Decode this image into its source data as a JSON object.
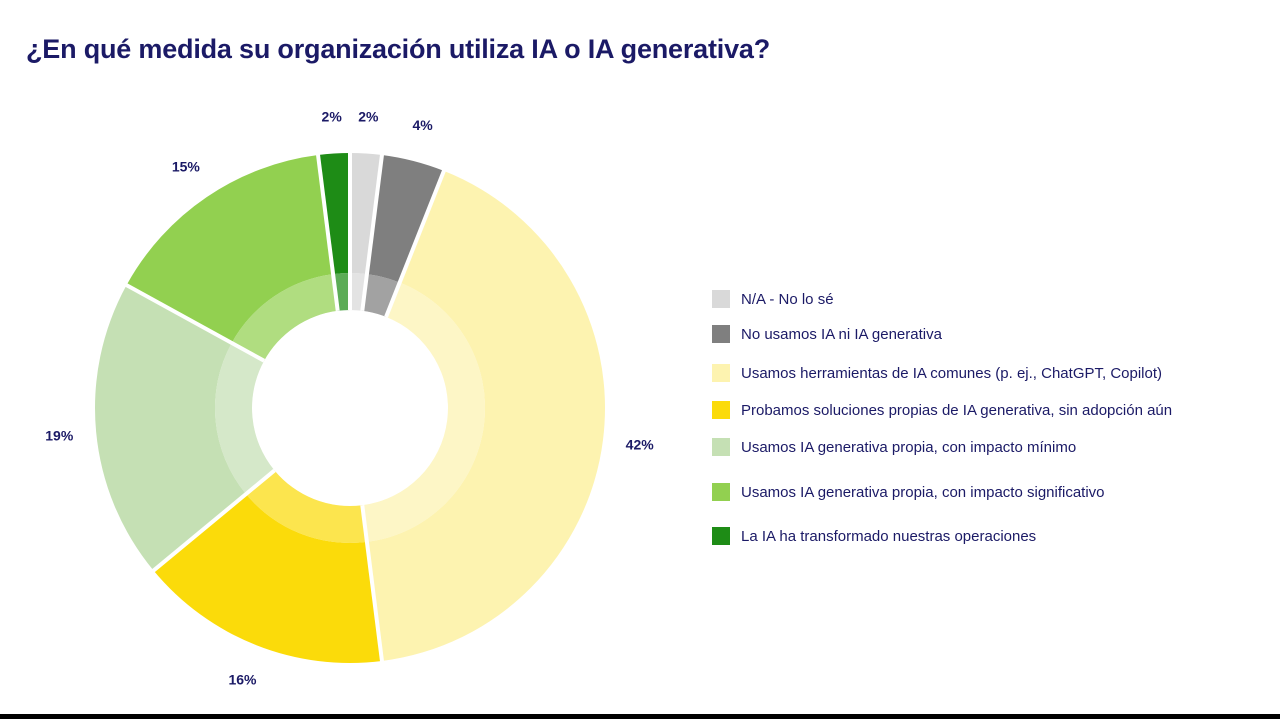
{
  "title": "¿En qué medida su organización utiliza IA o IA generativa?",
  "chart_data": {
    "type": "pie",
    "variant": "donut",
    "title": "¿En qué medida su organización utiliza IA o IA generativa?",
    "legend_position": "right",
    "slices": [
      {
        "label": "N/A - No lo sé",
        "value": 2,
        "display": "2%",
        "color": "#d9d9d9"
      },
      {
        "label": "No usamos IA ni IA generativa",
        "value": 4,
        "display": "4%",
        "color": "#7f7f7f"
      },
      {
        "label": "Usamos herramientas de IA comunes (p. ej., ChatGPT, Copilot)",
        "value": 42,
        "display": "42%",
        "color": "#fdf3b0"
      },
      {
        "label": "Probamos soluciones propias de IA generativa, sin adopción aún",
        "value": 16,
        "display": "16%",
        "color": "#fbdb0a"
      },
      {
        "label": "Usamos IA generativa propia, con impacto mínimo",
        "value": 19,
        "display": "19%",
        "color": "#c5e0b4"
      },
      {
        "label": "Usamos IA generativa propia, con impacto significativo",
        "value": 15,
        "display": "15%",
        "color": "#92d050"
      },
      {
        "label": "La IA ha transformado nuestras operaciones",
        "value": 2,
        "display": "2%",
        "color": "#1e8c16"
      }
    ]
  }
}
